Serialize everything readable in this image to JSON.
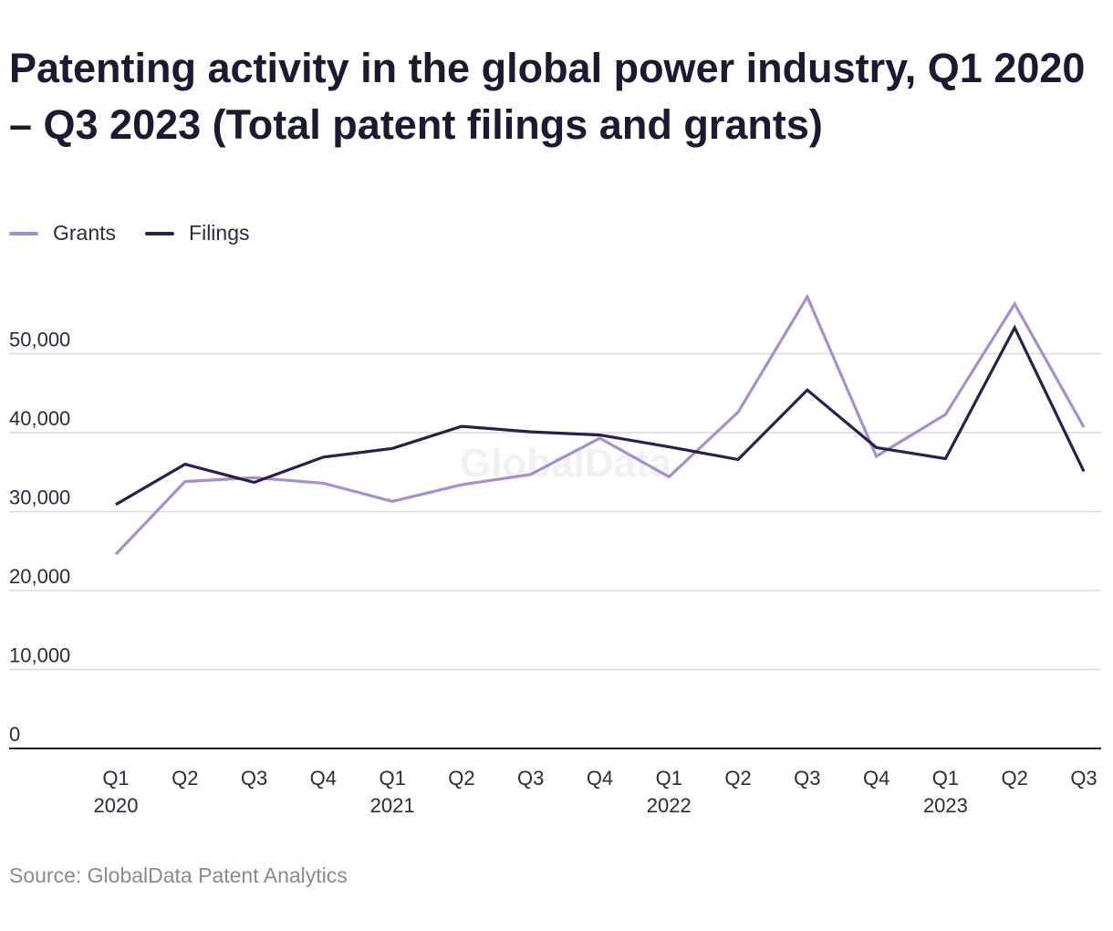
{
  "title": "Patenting activity in the global power industry, Q1 2020 – Q3 2023 (Total patent filings and grants)",
  "source": "Source: GlobalData Patent Analytics",
  "watermark": "GlobalData",
  "colors": {
    "grants": "#a68fcb",
    "filings": "#2c1d4e",
    "grid": "#d9d9d9",
    "axis": "#1b1a33",
    "text": "#2b2a3f"
  },
  "legend": [
    {
      "label": "Grants",
      "color": "#a68fcb"
    },
    {
      "label": "Filings",
      "color": "#2c1d4e"
    }
  ],
  "chart_data": {
    "type": "line",
    "title": "Patenting activity in the global power industry, Q1 2020 – Q3 2023 (Total patent filings and grants)",
    "categories": [
      "Q1 2020",
      "Q2 2020",
      "Q3 2020",
      "Q4 2020",
      "Q1 2021",
      "Q2 2021",
      "Q3 2021",
      "Q4 2021",
      "Q1 2022",
      "Q2 2022",
      "Q3 2022",
      "Q4 2022",
      "Q1 2023",
      "Q2 2023",
      "Q3 2023"
    ],
    "x_tick_labels": [
      {
        "quarter": "Q1",
        "year": "2020"
      },
      {
        "quarter": "Q2",
        "year": ""
      },
      {
        "quarter": "Q3",
        "year": ""
      },
      {
        "quarter": "Q4",
        "year": ""
      },
      {
        "quarter": "Q1",
        "year": "2021"
      },
      {
        "quarter": "Q2",
        "year": ""
      },
      {
        "quarter": "Q3",
        "year": ""
      },
      {
        "quarter": "Q4",
        "year": ""
      },
      {
        "quarter": "Q1",
        "year": "2022"
      },
      {
        "quarter": "Q2",
        "year": ""
      },
      {
        "quarter": "Q3",
        "year": ""
      },
      {
        "quarter": "Q4",
        "year": ""
      },
      {
        "quarter": "Q1",
        "year": "2023"
      },
      {
        "quarter": "Q2",
        "year": ""
      },
      {
        "quarter": "Q3",
        "year": ""
      }
    ],
    "series": [
      {
        "name": "Grants",
        "color": "#a68fcb",
        "values": [
          24600,
          33800,
          34300,
          33600,
          31300,
          33400,
          34700,
          39300,
          34400,
          42600,
          57200,
          37000,
          42300,
          56300,
          40700
        ]
      },
      {
        "name": "Filings",
        "color": "#2c1d4e",
        "values": [
          30900,
          36000,
          33700,
          36900,
          38000,
          40800,
          40100,
          39700,
          38200,
          36600,
          45400,
          38100,
          36700,
          53300,
          35100
        ]
      }
    ],
    "y_ticks": [
      0,
      10000,
      20000,
      30000,
      40000,
      50000
    ],
    "y_tick_labels": [
      "0",
      "10,000",
      "20,000",
      "30,000",
      "40,000",
      "50,000"
    ],
    "ylim": [
      0,
      60000
    ],
    "grid": true,
    "legend_position": "top-left"
  }
}
